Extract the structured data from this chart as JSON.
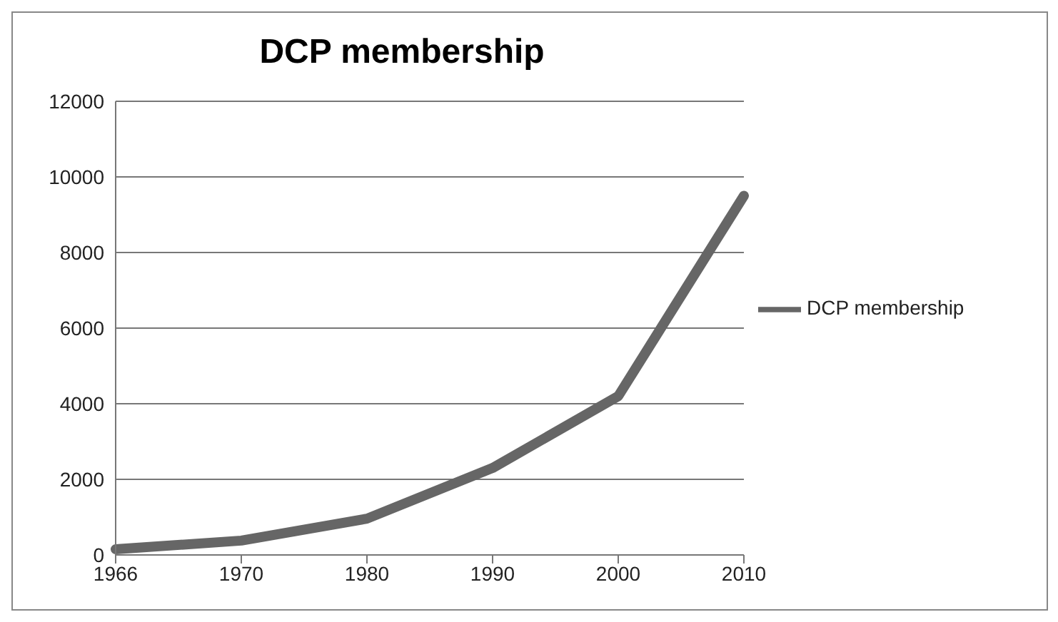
{
  "chart_data": {
    "type": "line",
    "title": "DCP membership",
    "categories": [
      "1966",
      "1970",
      "1980",
      "1990",
      "2000",
      "2010"
    ],
    "series": [
      {
        "name": "DCP membership",
        "color": "#666666",
        "values": [
          150,
          380,
          960,
          2300,
          4200,
          9500
        ]
      }
    ],
    "ylim": [
      0,
      12000
    ],
    "yticks": [
      0,
      2000,
      4000,
      6000,
      8000,
      10000,
      12000
    ],
    "grid": "y",
    "legend": "right",
    "marker": "none"
  }
}
